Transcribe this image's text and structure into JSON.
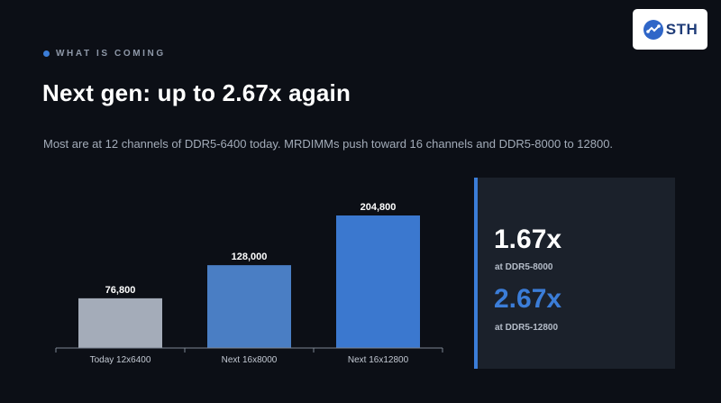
{
  "header": {
    "eyebrow": "WHAT IS COMING",
    "title": "Next gen: up to 2.67x again",
    "subtitle": "Most are at 12 channels of DDR5-6400 today. MRDIMMs push toward 16 channels and DDR5-8000 to 12800."
  },
  "logo": {
    "text": "STH"
  },
  "chart_data": {
    "type": "bar",
    "categories": [
      "Today 12x6400",
      "Next 16x8000",
      "Next 16x12800"
    ],
    "values": [
      76800,
      128000,
      204800
    ],
    "value_labels": [
      "76,800",
      "128,000",
      "204,800"
    ],
    "bar_colors": [
      "#a4acb9",
      "#4a7ec4",
      "#3b78cf"
    ],
    "title": "",
    "xlabel": "",
    "ylabel": "",
    "ylim": [
      0,
      204800
    ],
    "grid": false,
    "legend": "none"
  },
  "stats": [
    {
      "value": "1.67x",
      "caption": "at DDR5-8000",
      "color": "#ffffff"
    },
    {
      "value": "2.67x",
      "caption": "at DDR5-12800",
      "color": "#3b7dd8"
    }
  ],
  "colors": {
    "background": "#0c0f16",
    "accent": "#3b7dd8",
    "panel": "#1b212b",
    "axis": "#7d8592"
  }
}
